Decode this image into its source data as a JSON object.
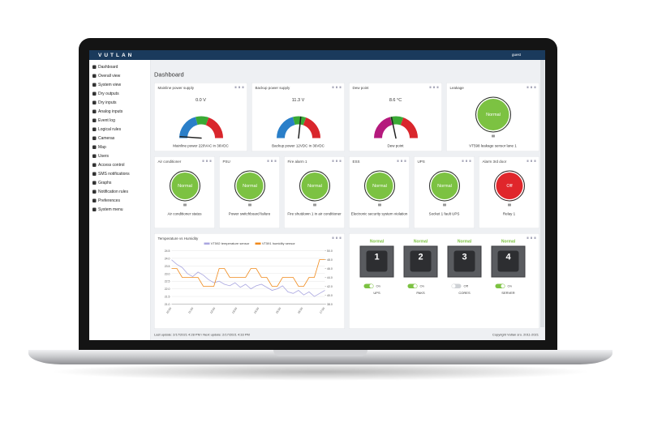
{
  "header": {
    "logo": "VUTLAN",
    "user": "guest"
  },
  "sidebar": [
    "Dashboard",
    "Overall view",
    "System view",
    "Dry outputs",
    "Dry inputs",
    "Analog inputs",
    "Event log",
    "Logical rules",
    "Cameras",
    "Map",
    "Users",
    "Access control",
    "SMS notifications",
    "Graphs",
    "Notification rules",
    "Preferences",
    "System menu"
  ],
  "page_title": "Dashboard",
  "gauges": [
    {
      "title": "Mainline power supply",
      "value": "0.0 V",
      "label": "Mainline power 220VAC in 36VDC",
      "colors": [
        "#2a7fc9",
        "#3aaa35",
        "#d9262c"
      ]
    },
    {
      "title": "Backup power supply",
      "value": "11.3 V",
      "label": "Backup power 12VDC in 36VDC",
      "colors": [
        "#2a7fc9",
        "#3aaa35",
        "#d9262c"
      ]
    },
    {
      "title": "Dew point",
      "value": "8.6 °C",
      "label": "Dew point",
      "colors": [
        "#b5197d",
        "#3aaa35",
        "#d9262c"
      ]
    }
  ],
  "leakage": {
    "title": "Leakage",
    "status": "Normal",
    "label": "VT598 leakage sensor lane 1",
    "color": "#7cc242"
  },
  "status_cards": [
    {
      "title": "Air conditioner",
      "status": "Normal",
      "label": "Air conditioner status",
      "color": "#7cc242"
    },
    {
      "title": "PSU",
      "status": "Normal",
      "label": "Power switchboard failure",
      "color": "#7cc242"
    },
    {
      "title": "Fire alarm 1",
      "status": "Normal",
      "label": "Fire shutdown 1 in air conditioner",
      "color": "#7cc242"
    },
    {
      "title": "ESS",
      "status": "Normal",
      "label": "Electronic security system violation",
      "color": "#7cc242"
    },
    {
      "title": "UPS",
      "status": "Normal",
      "label": "Socket 1 fault UPS",
      "color": "#7cc242"
    },
    {
      "title": "Alarm 3rd door",
      "status": "Off",
      "label": "Relay 1",
      "color": "#e0262b"
    }
  ],
  "chart": {
    "title": "Temperature vs Humidity",
    "xticks": [
      "10:00",
      "11:00",
      "12:00",
      "13:00",
      "14:00",
      "15:00",
      "16:00",
      "17:00"
    ],
    "ylim": [
      21,
      24.5
    ],
    "yticks": [
      {
        "value": 21,
        "label": "21.0"
      },
      {
        "value": 21.5,
        "label": "21.5"
      },
      {
        "value": 22,
        "label": "22.0"
      },
      {
        "value": 22.5,
        "label": "22.5"
      },
      {
        "value": 23,
        "label": "23.0"
      },
      {
        "value": 23.5,
        "label": "23.5"
      },
      {
        "value": 24,
        "label": "24.0"
      },
      {
        "value": 24.5,
        "label": "24.5"
      }
    ],
    "y2lim": [
      38,
      50
    ],
    "y2ticks": [
      {
        "value": 38,
        "label": "38.0"
      },
      {
        "value": 40,
        "label": "40.0"
      },
      {
        "value": 42,
        "label": "42.0"
      },
      {
        "value": 44,
        "label": "44.0"
      },
      {
        "value": 46,
        "label": "46.0"
      },
      {
        "value": 48,
        "label": "48.0"
      },
      {
        "value": 50,
        "label": "50.0"
      }
    ],
    "series": [
      {
        "name": "VT592 temperature sensor",
        "color": "#a9a6e0",
        "values": [
          23.9,
          23.6,
          23.4,
          23.0,
          22.8,
          23.1,
          22.9,
          22.6,
          22.4,
          22.5,
          22.3,
          22.2,
          22.4,
          22.1,
          22.3,
          22.0,
          22.2,
          22.3,
          22.1,
          21.9,
          22.0,
          22.2,
          21.8,
          21.7,
          21.9,
          21.6,
          21.8,
          21.5,
          21.7,
          21.9
        ]
      },
      {
        "name": "VT591 humidity sensor",
        "color": "#f08a1c",
        "axis": "y2",
        "values": [
          46,
          46,
          44,
          44,
          44,
          44,
          42,
          42,
          42,
          46,
          46,
          44,
          44,
          44,
          44,
          46,
          46,
          44,
          44,
          42,
          42,
          44,
          44,
          44,
          42,
          42,
          44,
          44,
          48,
          48
        ]
      }
    ]
  },
  "sockets": [
    {
      "number": "1",
      "status": "Normal",
      "state": "On",
      "name": "UPS"
    },
    {
      "number": "2",
      "status": "Normal",
      "state": "On",
      "name": "PAKS"
    },
    {
      "number": "3",
      "status": "Normal",
      "state": "Off",
      "name": "CORES"
    },
    {
      "number": "4",
      "status": "Normal",
      "state": "On",
      "name": "SERVER"
    }
  ],
  "footer": {
    "left": "Last update: 2/17/2021 4:28 PM / Next update: 2/17/2021 4:33 PM",
    "right": "Copyright Vutlan sro. 2011-2021"
  }
}
